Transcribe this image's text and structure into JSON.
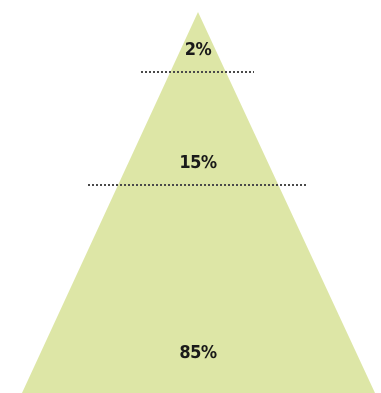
{
  "pyramid": {
    "fill_color": "#dde6a6",
    "divider_color": "#4a4a4a",
    "tiers": [
      {
        "label": "2%"
      },
      {
        "label": "15%"
      },
      {
        "label": "85%"
      }
    ]
  }
}
